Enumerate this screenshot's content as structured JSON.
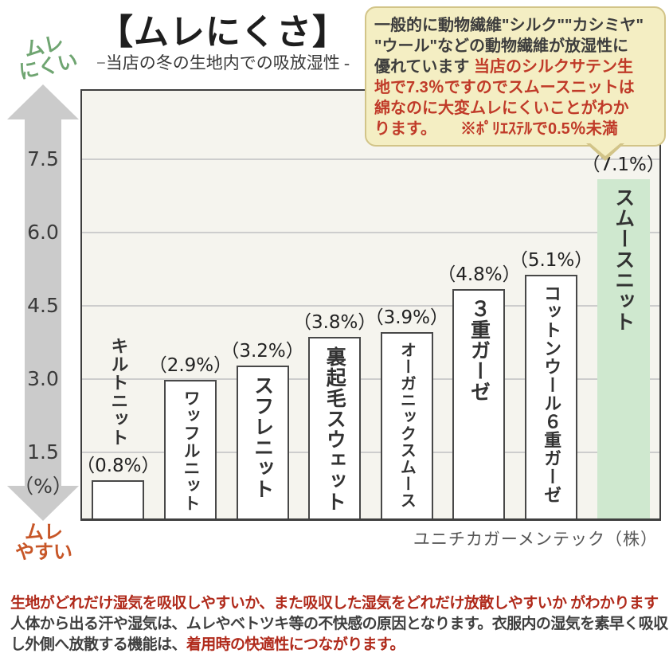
{
  "title": "【ムレにくさ】",
  "subtitle": "−当店の冬の生地内での吸放湿性 -",
  "axis": {
    "top_label": "ムレ\nにくい",
    "bottom_label": "ムレ\nやすい",
    "top_label_color": "#6fa571",
    "bottom_label_color": "#c75627",
    "arrow_color": "#cbcbcb",
    "unit_label": "（%）"
  },
  "callout": {
    "bg_color": "#f4eec3",
    "border_color": "#d2c488",
    "text_color_dark": "#3d3d3d",
    "text_color_red": "#c03a28",
    "lines": [
      [
        {
          "text": "一般的に動物繊維\"シルク\"\"カシミヤ\"",
          "color": "dark"
        }
      ],
      [
        {
          "text": "\"ウール\"などの動物繊維が放湿性に",
          "color": "dark"
        }
      ],
      [
        {
          "text": "優れています ",
          "color": "dark"
        },
        {
          "text": "当店のシルクサテン生",
          "color": "red"
        }
      ],
      [
        {
          "text": "地で7.3％ですのでスムースニットは",
          "color": "red"
        }
      ],
      [
        {
          "text": "綿なのに大変ムレにくいことがわか",
          "color": "red"
        }
      ],
      [
        {
          "text": "ります。　　※ﾎﾟﾘｴｽﾃﾙで0.5％未満",
          "color": "red"
        }
      ]
    ]
  },
  "chart_data": {
    "type": "bar",
    "title": "【ムレにくさ】−当店の冬の生地内での吸放湿性 -",
    "categories": [
      "キルトニット",
      "ワッフルニット",
      "スフレニット",
      "裏起毛スウェット",
      "オーガニックスムース",
      "３重ガーゼ",
      "コットンウール６重ガーゼ",
      "スムースニット"
    ],
    "values": [
      0.8,
      2.9,
      3.2,
      3.8,
      3.9,
      4.8,
      5.1,
      7.1
    ],
    "value_labels": [
      "（0.8%）",
      "（2.9%）",
      "（3.2%）",
      "（3.8%）",
      "（3.9%）",
      "（4.8%）",
      "（5.1%）",
      "（7.1%）"
    ],
    "ylabel": "%",
    "ylim": [
      0,
      9
    ],
    "yticks": [
      {
        "label": "1.5",
        "value": 1.5
      },
      {
        "label": "3.0",
        "value": 3.0
      },
      {
        "label": "4.5",
        "value": 4.5
      },
      {
        "label": "6.0",
        "value": 6.0
      },
      {
        "label": "7.5",
        "value": 7.5
      }
    ],
    "grid": true,
    "legend": false,
    "bar_color": "#ffffff",
    "bar_border_color": "#484848",
    "highlight_index": 7,
    "highlight_color": "#cfe8cf",
    "plot_bg_color": "#f5f4ee",
    "outside_label_index": 0,
    "source": "ユニチカガーメンテック（株）"
  },
  "footer": {
    "color_dark": "#3f3f3f",
    "color_red": "#b02a1b",
    "lines": [
      [
        {
          "text": "生地がどれだけ湿気を吸収しやすいか、また吸収した湿気をどれだけ放散しやすいか がわかります",
          "color": "red"
        }
      ],
      [
        {
          "text": "人体から出る汗や湿気は、ムレやベトツキ等の不快感の原因となります。衣服内の湿気を素早く吸収",
          "color": "dark"
        }
      ],
      [
        {
          "text": "し外側へ放散する機能は、",
          "color": "dark"
        },
        {
          "text": "着用時の快適性につながります。",
          "color": "red"
        }
      ]
    ]
  }
}
